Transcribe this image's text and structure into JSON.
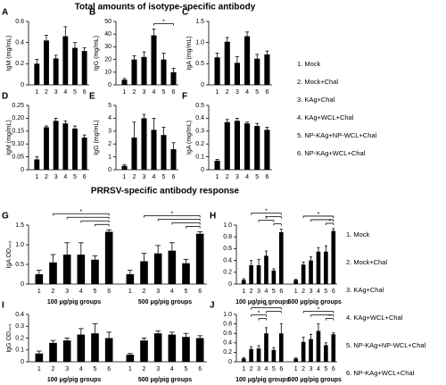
{
  "title": "Total amounts of isotype-specific antibody",
  "subtitle": "PRRSV-specific antibody response",
  "legend_top": [
    "1. Mock",
    "2. Mock+Chal",
    "3. KAg+Chal",
    "4. KAg+WCL+Chal",
    "5. NP-KAg+NP-WCL+Chal",
    "6. NP-KAg+WCL+Chal"
  ],
  "legend_bottom": [
    "1. Mock",
    "2. Mock+Chal",
    "3. KAg+Chal",
    "4. KAg+WCL+Chal",
    "5. NP-KAg+NP-WCL+Chal",
    "6. NP-KAg+WCL+Chal"
  ],
  "chart_data": [
    {
      "type": "bar",
      "label": "A",
      "ylabel": "IgM (mg/mL)",
      "color": "#000000",
      "categories": [
        "1",
        "2",
        "3",
        "4",
        "5",
        "6"
      ],
      "series": [
        {
          "values": [
            0.2,
            0.42,
            0.25,
            0.46,
            0.35,
            0.32
          ],
          "errors": [
            0.04,
            0.05,
            0.03,
            0.09,
            0.05,
            0.03
          ]
        }
      ],
      "ylim": [
        0,
        0.6
      ],
      "yticks": [
        0,
        0.2,
        0.4,
        0.6
      ],
      "brackets": []
    },
    {
      "type": "bar",
      "label": "B",
      "ylabel": "IgG (mg/mL)",
      "color": "#000000",
      "categories": [
        "1",
        "2",
        "3",
        "4",
        "5",
        "6"
      ],
      "series": [
        {
          "values": [
            4,
            20,
            22,
            39,
            20,
            10
          ],
          "errors": [
            1,
            3,
            4,
            5,
            5,
            3
          ]
        }
      ],
      "ylim": [
        0,
        50
      ],
      "yticks": [
        0,
        10,
        20,
        30,
        40,
        50
      ],
      "brackets": [
        {
          "series": 0,
          "from": 3,
          "to": 5,
          "label": "*"
        }
      ]
    },
    {
      "type": "bar",
      "label": "C",
      "ylabel": "IgA (mg/mL)",
      "color": "#000000",
      "categories": [
        "1",
        "2",
        "3",
        "4",
        "5",
        "6"
      ],
      "series": [
        {
          "values": [
            0.65,
            1.02,
            0.52,
            1.15,
            0.62,
            0.72
          ],
          "errors": [
            0.1,
            0.1,
            0.15,
            0.1,
            0.1,
            0.08
          ]
        }
      ],
      "ylim": [
        0,
        1.5
      ],
      "yticks": [
        0,
        0.5,
        {
          "value": 1,
          "label": "1.0"
        },
        1.5
      ],
      "brackets": []
    },
    {
      "type": "bar",
      "label": "D",
      "ylabel": "IgM (mg/mL)",
      "color": "#000000",
      "categories": [
        "1",
        "2",
        "3",
        "4",
        "5",
        "6"
      ],
      "series": [
        {
          "values": [
            0.04,
            0.165,
            0.19,
            0.18,
            0.16,
            0.125
          ],
          "errors": [
            0.01,
            0.005,
            0.01,
            0.01,
            0.01,
            0.01
          ]
        }
      ],
      "ylim": [
        0,
        0.25
      ],
      "yticks": [
        0,
        0.05,
        {
          "value": 0.1,
          "label": "0.10"
        },
        0.15,
        {
          "value": 0.2,
          "label": "0.20"
        },
        0.25
      ],
      "brackets": []
    },
    {
      "type": "bar",
      "label": "E",
      "ylabel": "IgG (mg/mL)",
      "color": "#000000",
      "categories": [
        "1",
        "2",
        "3",
        "4",
        "5",
        "6"
      ],
      "series": [
        {
          "values": [
            0.3,
            2.5,
            4.0,
            3.1,
            2.7,
            1.6
          ],
          "errors": [
            0.1,
            1.2,
            0.3,
            0.9,
            0.6,
            0.5
          ]
        }
      ],
      "ylim": [
        0,
        5
      ],
      "yticks": [
        0,
        1,
        2,
        3,
        4,
        5
      ],
      "brackets": []
    },
    {
      "type": "bar",
      "label": "F",
      "ylabel": "IgA (mg/mL)",
      "color": "#000000",
      "categories": [
        "1",
        "2",
        "3",
        "4",
        "5",
        "6"
      ],
      "series": [
        {
          "values": [
            0.07,
            0.37,
            0.38,
            0.36,
            0.34,
            0.31
          ],
          "errors": [
            0.01,
            0.02,
            0.02,
            0.01,
            0.02,
            0.02
          ]
        }
      ],
      "ylim": [
        0,
        0.5
      ],
      "yticks": [
        0,
        0.1,
        0.2,
        0.3,
        0.4,
        0.5
      ],
      "brackets": []
    },
    {
      "type": "bar",
      "label": "G",
      "ylabel": "IgA OD₄₀₅",
      "color": "#000000",
      "categories": [
        "1",
        "2",
        "3",
        "4",
        "5",
        "6"
      ],
      "series": [
        {
          "name": "100 μg/pig groups",
          "values": [
            0.25,
            0.55,
            0.75,
            0.75,
            0.62,
            1.33
          ],
          "errors": [
            0.1,
            0.2,
            0.3,
            0.3,
            0.1,
            0.05
          ]
        },
        {
          "name": "500 μg/pig groups",
          "values": [
            0.25,
            0.58,
            0.78,
            0.85,
            0.53,
            1.28
          ],
          "errors": [
            0.1,
            0.2,
            0.2,
            0.2,
            0.1,
            0.05
          ]
        }
      ],
      "ylim": [
        0,
        1.5
      ],
      "yticks": [
        0,
        0.5,
        {
          "value": 1,
          "label": "1.0"
        },
        1.5
      ],
      "brackets": [
        {
          "series": 0,
          "from": 4,
          "to": 5
        },
        {
          "series": 0,
          "from": 3,
          "to": 5
        },
        {
          "series": 0,
          "from": 2,
          "to": 5
        },
        {
          "series": 0,
          "from": 1,
          "to": 5,
          "label": "*"
        },
        {
          "series": 1,
          "from": 4,
          "to": 5
        },
        {
          "series": 1,
          "from": 3,
          "to": 5
        },
        {
          "series": 1,
          "from": 2,
          "to": 5
        },
        {
          "series": 1,
          "from": 1,
          "to": 5,
          "label": "*"
        }
      ]
    },
    {
      "type": "bar",
      "label": "H",
      "ylabel": "",
      "color": "#000000",
      "categories": [
        "1",
        "2",
        "3",
        "4",
        "5",
        "6"
      ],
      "series": [
        {
          "name": "100 μg/pig groups",
          "values": [
            0.07,
            0.32,
            0.32,
            0.48,
            0.23,
            0.88
          ],
          "errors": [
            0.02,
            0.08,
            0.1,
            0.08,
            0.03,
            0.05
          ]
        },
        {
          "name": "500 μg/pig groups",
          "values": [
            0.07,
            0.33,
            0.4,
            0.55,
            0.55,
            0.9
          ],
          "errors": [
            0.01,
            0.04,
            0.06,
            0.07,
            0.1,
            0.04
          ]
        }
      ],
      "ylim": [
        0,
        1
      ],
      "yticks": [
        0,
        0.2,
        0.4,
        0.6,
        0.8,
        {
          "value": 1,
          "label": "1.0"
        }
      ],
      "brackets": [
        {
          "series": 0,
          "from": 4,
          "to": 5
        },
        {
          "series": 0,
          "from": 2,
          "to": 4,
          "label": "*"
        },
        {
          "series": 0,
          "from": 3,
          "to": 5
        },
        {
          "series": 0,
          "from": 1,
          "to": 5,
          "label": "*"
        },
        {
          "series": 1,
          "from": 4,
          "to": 5,
          "label": "*"
        },
        {
          "series": 1,
          "from": 2,
          "to": 5
        },
        {
          "series": 1,
          "from": 1,
          "to": 5,
          "label": "*"
        }
      ]
    },
    {
      "type": "bar",
      "label": "I",
      "ylabel": "IgG OD₄₀₅",
      "color": "#000000",
      "categories": [
        "1",
        "2",
        "3",
        "4",
        "5",
        "6"
      ],
      "series": [
        {
          "name": "100 μg/pig groups",
          "values": [
            0.07,
            0.16,
            0.18,
            0.23,
            0.24,
            0.2
          ],
          "errors": [
            0.02,
            0.02,
            0.02,
            0.05,
            0.08,
            0.05
          ]
        },
        {
          "name": "500 μg/pig groups",
          "values": [
            0.06,
            0.18,
            0.24,
            0.23,
            0.21,
            0.2
          ],
          "errors": [
            0.01,
            0.02,
            0.02,
            0.02,
            0.03,
            0.02
          ]
        }
      ],
      "ylim": [
        0,
        0.4
      ],
      "yticks": [
        0,
        0.1,
        0.2,
        0.3,
        0.4
      ],
      "brackets": []
    },
    {
      "type": "bar",
      "label": "J",
      "ylabel": "",
      "color": "#000000",
      "categories": [
        "1",
        "2",
        "3",
        "4",
        "5",
        "6"
      ],
      "series": [
        {
          "name": "100 μg/pig groups",
          "values": [
            0.07,
            0.27,
            0.28,
            0.6,
            0.25,
            0.6
          ],
          "errors": [
            0.02,
            0.05,
            0.06,
            0.12,
            0.05,
            0.2
          ]
        },
        {
          "name": "500 μg/pig groups",
          "values": [
            0.07,
            0.42,
            0.48,
            0.65,
            0.35,
            0.58
          ],
          "errors": [
            0.01,
            0.1,
            0.1,
            0.15,
            0.05,
            0.03
          ]
        }
      ],
      "ylim": [
        0,
        1
      ],
      "yticks": [
        0,
        0.2,
        0.4,
        0.6,
        0.8,
        {
          "value": 1,
          "label": "1.0"
        }
      ],
      "brackets": [
        {
          "series": 0,
          "from": 2,
          "to": 3
        },
        {
          "series": 0,
          "from": 1,
          "to": 3,
          "label": "*"
        },
        {
          "series": 0,
          "from": 3,
          "to": 5
        },
        {
          "series": 0,
          "from": 1,
          "to": 5,
          "label": "*"
        },
        {
          "series": 1,
          "from": 4,
          "to": 5,
          "label": "*"
        },
        {
          "series": 1,
          "from": 2,
          "to": 5
        },
        {
          "series": 1,
          "from": 1,
          "to": 5,
          "label": "*"
        }
      ]
    }
  ]
}
